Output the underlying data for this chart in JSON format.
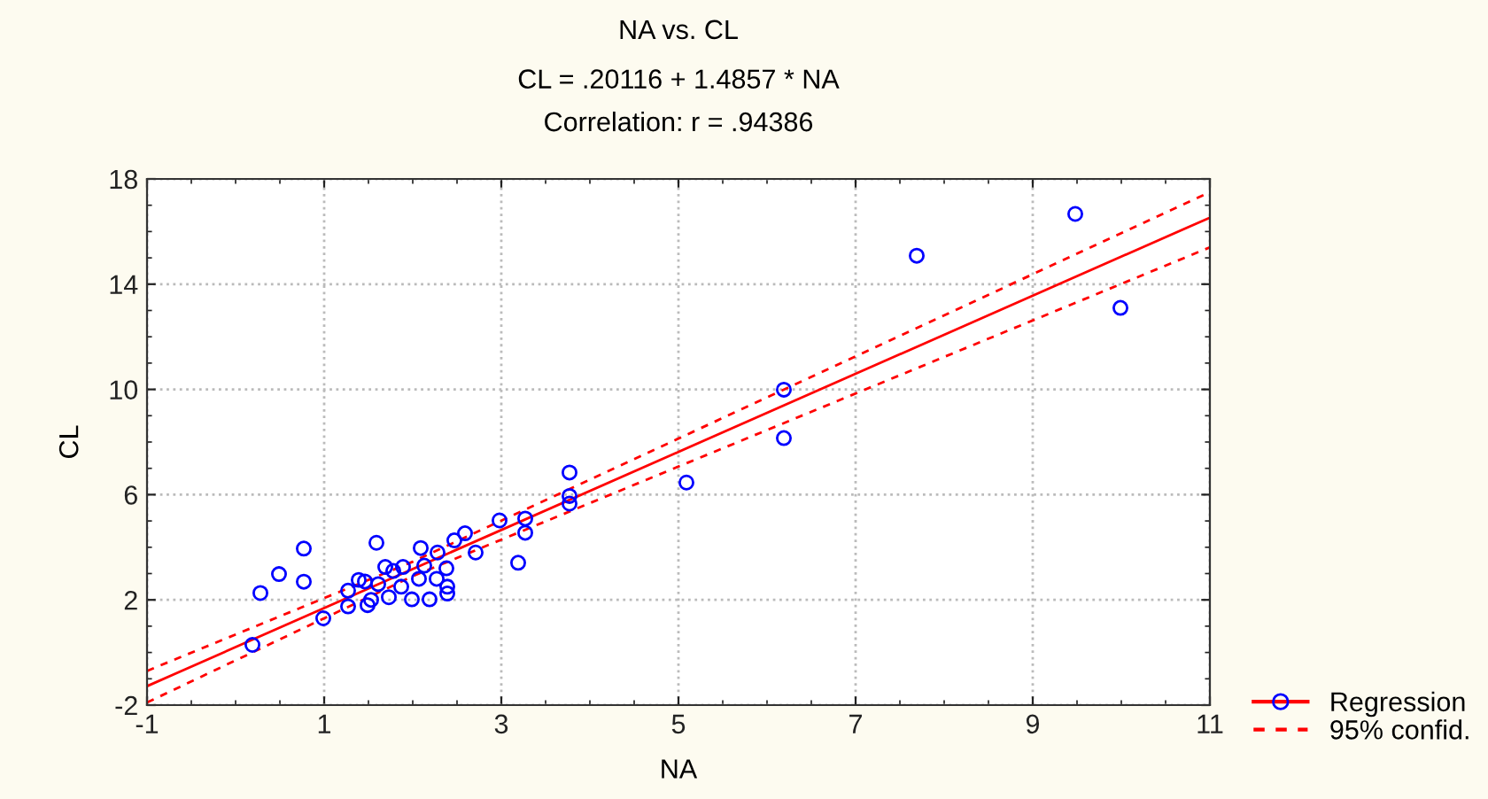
{
  "chart_data": {
    "type": "scatter",
    "title": "NA vs. CL",
    "subtitle": "CL = .20116 + 1.4857 * NA\nCorrelation: r = .94386",
    "xlabel": "NA",
    "ylabel": "CL",
    "xlim": [
      -1,
      11
    ],
    "xticks": [
      -1,
      1,
      3,
      5,
      7,
      9,
      11
    ],
    "ylim": [
      -2,
      18
    ],
    "yticks": [
      -2,
      2,
      6,
      10,
      14,
      18
    ],
    "grid": true,
    "legend": "bottom right",
    "series": [
      {
        "color": "#0000ff",
        "marker": "circle",
        "x": [
          0.19,
          0.99,
          0.28,
          0.49,
          0.77,
          0.77,
          1.59,
          1.27,
          1.27,
          1.49,
          1.39,
          1.46,
          1.69,
          1.78,
          1.89,
          1.99,
          2.19,
          2.09,
          2.28,
          2.39,
          2.39,
          2.47,
          2.59,
          2.71,
          2.38,
          2.07,
          2.27,
          1.61,
          1.73,
          1.53,
          2.13,
          1.87,
          2.98,
          3.27,
          3.27,
          3.19,
          3.77,
          3.77,
          3.77,
          5.09,
          6.19,
          6.19,
          7.69,
          9.48,
          9.99
        ],
        "values": [
          0.29,
          1.3,
          2.26,
          2.98,
          3.95,
          2.69,
          4.17,
          2.35,
          1.75,
          1.8,
          2.76,
          2.7,
          3.25,
          3.1,
          3.25,
          2.02,
          2.02,
          3.97,
          3.8,
          2.24,
          2.5,
          4.26,
          4.53,
          3.8,
          3.2,
          2.8,
          2.8,
          2.6,
          2.1,
          2.0,
          3.3,
          2.5,
          5.02,
          5.09,
          4.55,
          3.41,
          6.84,
          5.95,
          5.66,
          6.46,
          9.99,
          8.15,
          15.08,
          16.67,
          13.1
        ]
      },
      {
        "type": "line",
        "name": "Regression",
        "color": "#ff0000",
        "line_style": "solid",
        "x": [
          -1,
          11
        ],
        "values": [
          -1.28,
          16.53
        ]
      },
      {
        "type": "line",
        "name": "95% confid.",
        "color": "#ff0000",
        "line_style": "dashed",
        "x": [
          -1,
          2,
          11
        ],
        "values": [
          -0.7,
          3.45,
          17.5
        ]
      },
      {
        "type": "line",
        "color": "#ff0000",
        "line_style": "dashed",
        "x": [
          -1,
          2,
          11
        ],
        "values": [
          -1.9,
          2.9,
          15.4
        ]
      }
    ]
  }
}
